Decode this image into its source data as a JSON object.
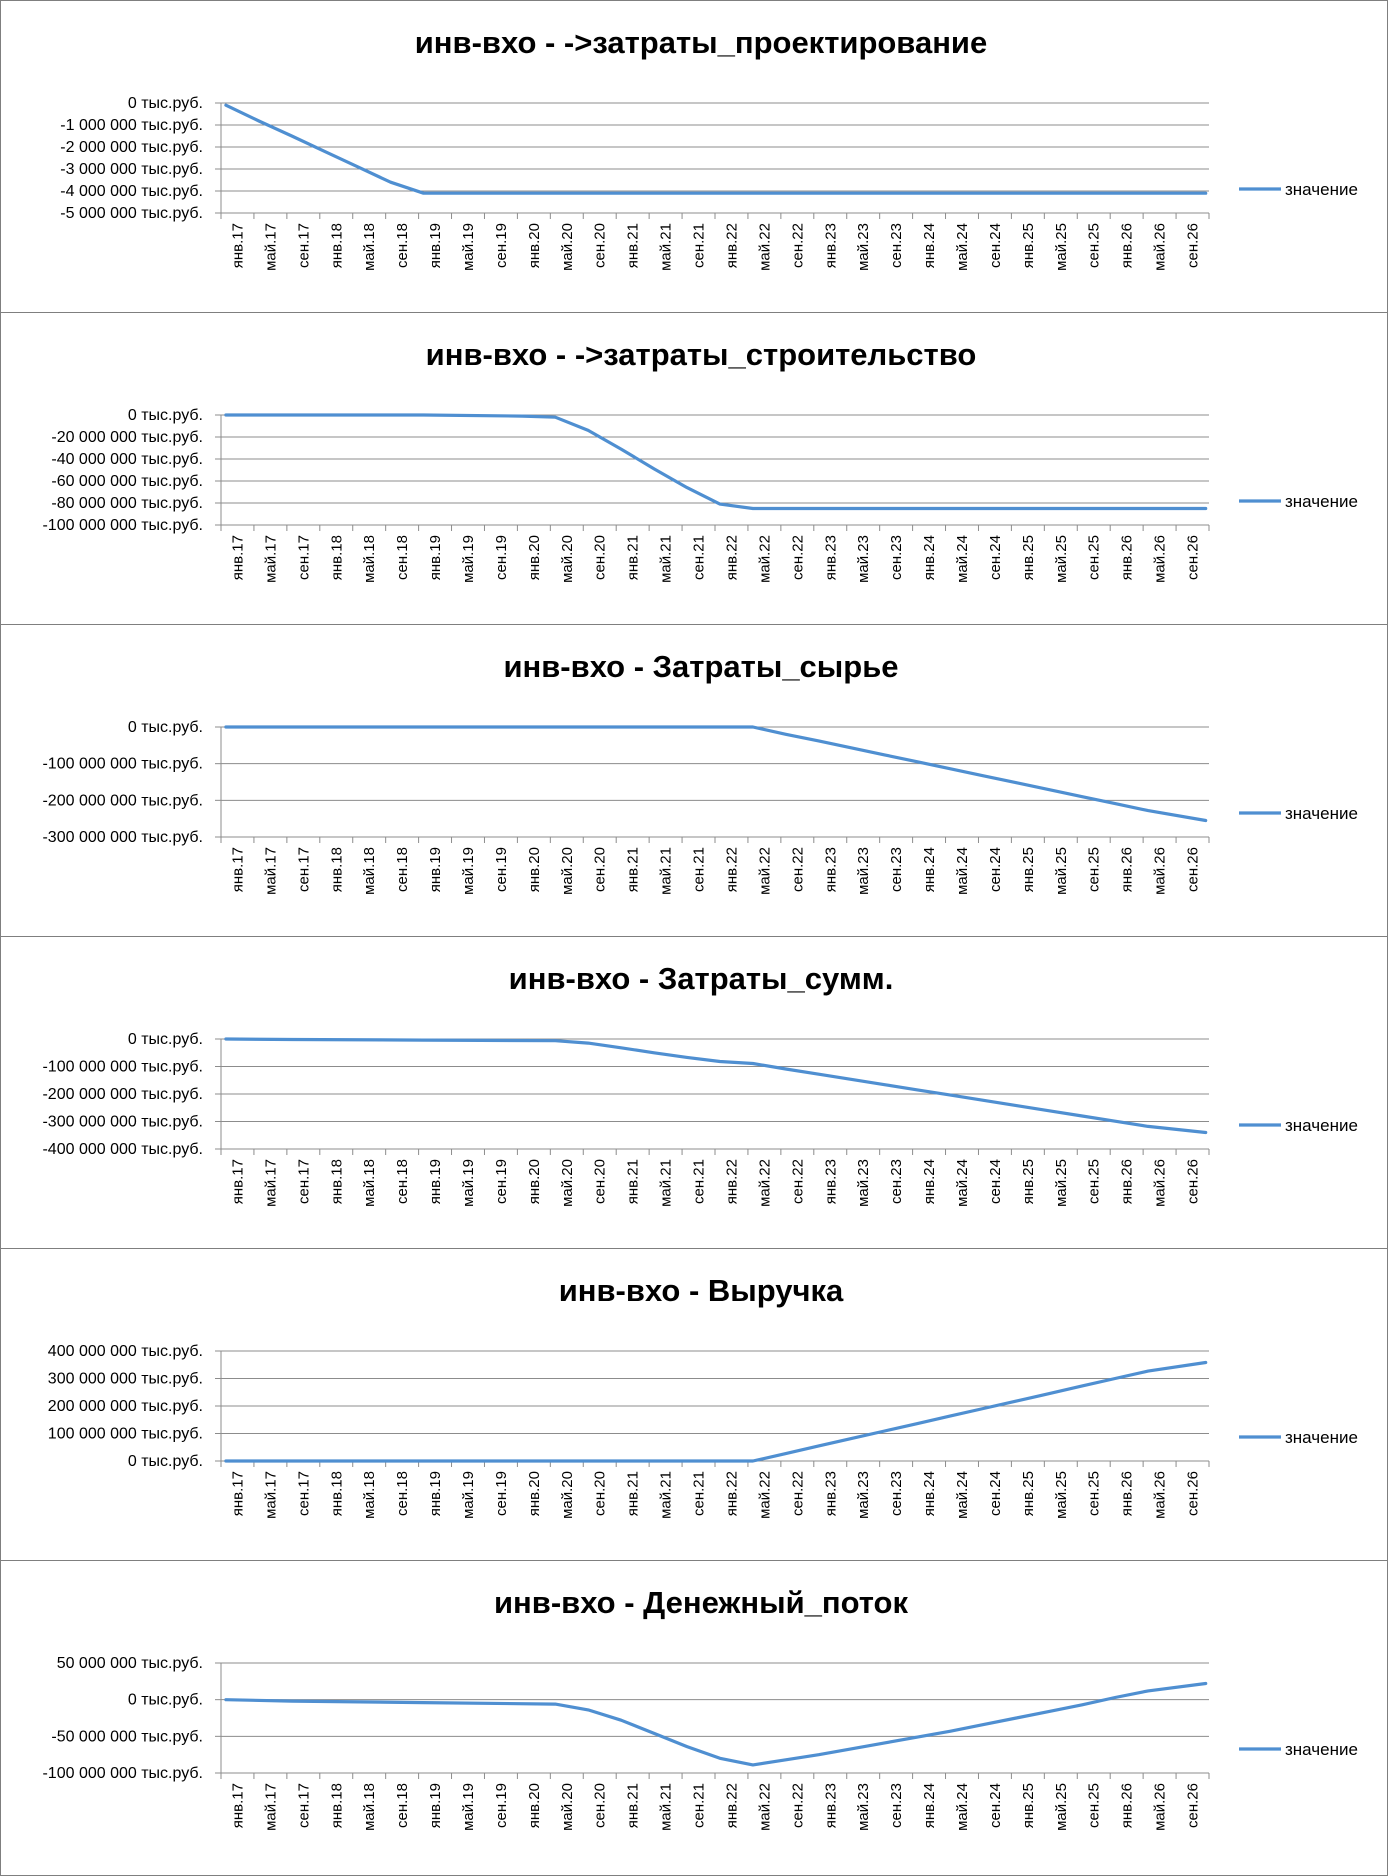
{
  "x_labels": [
    "янв.17",
    "май.17",
    "сен.17",
    "янв.18",
    "май.18",
    "сен.18",
    "янв.19",
    "май.19",
    "сен.19",
    "янв.20",
    "май.20",
    "сен.20",
    "янв.21",
    "май.21",
    "сен.21",
    "янв.22",
    "май.22",
    "сен.22",
    "янв.23",
    "май.23",
    "сен.23",
    "янв.24",
    "май.24",
    "сен.24",
    "янв.25",
    "май.25",
    "сен.25",
    "янв.26",
    "май.26",
    "сен.26"
  ],
  "colors": {
    "line": "#4f8fd1",
    "grid": "#8c8c8c",
    "axis": "#8c8c8c",
    "border": "#7f7f7f"
  },
  "chart_data": [
    {
      "type": "line",
      "title": "инв-вхо - ->затраты_проектирование",
      "yticks": [
        "0 тыс.руб.",
        "-1 000 000 тыс.руб.",
        "-2 000 000 тыс.руб.",
        "-3 000 000 тыс.руб.",
        "-4 000 000 тыс.руб.",
        "-5 000 000 тыс.руб."
      ],
      "ylim": [
        -5000000,
        0
      ],
      "grid": true,
      "legend": "right",
      "series": [
        {
          "name": "значение",
          "x": [
            "янв.17",
            "май.17",
            "сен.17",
            "янв.18",
            "май.18",
            "сен.18",
            "янв.19",
            "сен.26"
          ],
          "y": [
            -100000,
            -820000,
            -1500000,
            -2200000,
            -2900000,
            -3600000,
            -4100000,
            -4100000
          ]
        }
      ]
    },
    {
      "type": "line",
      "title": "инв-вхо - ->затраты_строительство",
      "yticks": [
        "0 тыс.руб.",
        "-20 000 000 тыс.руб.",
        "-40 000 000 тыс.руб.",
        "-60 000 000 тыс.руб.",
        "-80 000 000 тыс.руб.",
        "-100 000 000 тыс.руб."
      ],
      "ylim": [
        -100000000,
        0
      ],
      "grid": true,
      "legend": "right",
      "series": [
        {
          "name": "значение",
          "x": [
            "янв.17",
            "янв.19",
            "янв.20",
            "май.20",
            "сен.20",
            "янв.21",
            "май.21",
            "сен.21",
            "янв.22",
            "май.22",
            "сен.26"
          ],
          "y": [
            0,
            0,
            -1000000,
            -2000000,
            -14000000,
            -31000000,
            -49000000,
            -66000000,
            -81000000,
            -85000000,
            -85000000
          ]
        }
      ]
    },
    {
      "type": "line",
      "title": "инв-вхо - Затраты_сырье",
      "yticks": [
        "0 тыс.руб.",
        "-100 000 000 тыс.руб.",
        "-200 000 000 тыс.руб.",
        "-300 000 000 тыс.руб."
      ],
      "ylim": [
        -300000000,
        0
      ],
      "grid": true,
      "legend": "right",
      "series": [
        {
          "name": "значение",
          "x": [
            "янв.17",
            "май.22",
            "сен.22",
            "янв.23",
            "май.23",
            "сен.23",
            "янв.24",
            "май.24",
            "сен.24",
            "янв.25",
            "май.25",
            "сен.25",
            "янв.26",
            "май.26",
            "сен.26"
          ],
          "y": [
            0,
            0,
            -20000000,
            -38000000,
            -57000000,
            -76000000,
            -95000000,
            -114000000,
            -133000000,
            -152000000,
            -171000000,
            -190000000,
            -209000000,
            -228000000,
            -255000000
          ]
        }
      ]
    },
    {
      "type": "line",
      "title": "инв-вхо - Затраты_сумм.",
      "yticks": [
        "0 тыс.руб.",
        "-100 000 000 тыс.руб.",
        "-200 000 000 тыс.руб.",
        "-300 000 000 тыс.руб.",
        "-400 000 000 тыс.руб."
      ],
      "ylim": [
        -400000000,
        0
      ],
      "grid": true,
      "legend": "right",
      "series": [
        {
          "name": "значение",
          "x": [
            "янв.17",
            "сен.17",
            "янв.19",
            "май.20",
            "сен.20",
            "янв.21",
            "май.21",
            "сен.21",
            "янв.22",
            "май.22",
            "сен.22",
            "янв.23",
            "май.23",
            "сен.23",
            "янв.24",
            "май.24",
            "сен.24",
            "янв.25",
            "май.25",
            "сен.25",
            "янв.26",
            "май.26",
            "сен.26"
          ],
          "y": [
            0,
            -2000000,
            -4000000,
            -6000000,
            -15000000,
            -32000000,
            -50000000,
            -67000000,
            -82000000,
            -89000000,
            -109000000,
            -128000000,
            -147000000,
            -166000000,
            -185000000,
            -204000000,
            -223000000,
            -242000000,
            -261000000,
            -280000000,
            -299000000,
            -318000000,
            -340000000
          ]
        }
      ]
    },
    {
      "type": "line",
      "title": "инв-вхо - Выручка",
      "yticks": [
        "400 000 000 тыс.руб.",
        "300 000 000 тыс.руб.",
        "200 000 000 тыс.руб.",
        "100 000 000 тыс.руб.",
        "0 тыс.руб."
      ],
      "ylim": [
        0,
        400000000
      ],
      "grid": true,
      "legend": "right",
      "series": [
        {
          "name": "значение",
          "x": [
            "янв.17",
            "май.22",
            "сен.22",
            "янв.23",
            "май.23",
            "сен.23",
            "янв.24",
            "май.24",
            "сен.24",
            "янв.25",
            "май.25",
            "сен.25",
            "янв.26",
            "май.26",
            "сен.26"
          ],
          "y": [
            0,
            0,
            27000000,
            55000000,
            82000000,
            109000000,
            136000000,
            164000000,
            191000000,
            218000000,
            245000000,
            273000000,
            300000000,
            327000000,
            358000000
          ]
        }
      ]
    },
    {
      "type": "line",
      "title": "инв-вхо - Денежный_поток",
      "yticks": [
        "50 000 000 тыс.руб.",
        "0 тыс.руб.",
        "-50 000 000 тыс.руб.",
        "-100 000 000 тыс.руб."
      ],
      "ylim": [
        -100000000,
        50000000
      ],
      "grid": true,
      "legend": "right",
      "series": [
        {
          "name": "значение",
          "x": [
            "янв.17",
            "сен.17",
            "янв.19",
            "май.20",
            "сен.20",
            "янв.21",
            "май.21",
            "сен.21",
            "янв.22",
            "май.22",
            "сен.22",
            "янв.23",
            "май.23",
            "сен.23",
            "янв.24",
            "май.24",
            "сен.24",
            "янв.25",
            "май.25",
            "сен.25",
            "янв.26",
            "май.26",
            "сен.26"
          ],
          "y": [
            0,
            -2000000,
            -4000000,
            -6000000,
            -14000000,
            -28000000,
            -46000000,
            -64000000,
            -80000000,
            -89000000,
            -82000000,
            -75000000,
            -67000000,
            -59000000,
            -51000000,
            -43000000,
            -34000000,
            -25000000,
            -16000000,
            -7000000,
            3000000,
            12000000,
            22000000
          ]
        }
      ]
    }
  ]
}
